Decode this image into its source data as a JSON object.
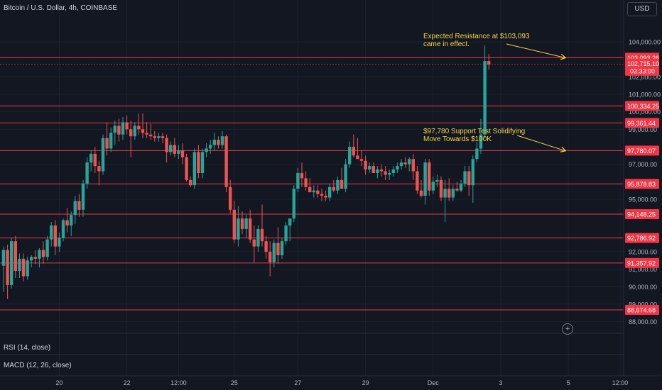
{
  "header": {
    "symbol_title": "Bitcoin / U.S. Dollar, 4h, COINBASE",
    "currency_label": "USD"
  },
  "indicators": {
    "rsi_label": "RSI (14, close)",
    "macd_label": "MACD (12, 26, close)"
  },
  "colors": {
    "background": "#131722",
    "up": "#26a69a",
    "down": "#ef5350",
    "level_line": "#f23645",
    "annotation": "#f5d547",
    "grid": "#1e222d",
    "axis_text": "#b2b5be"
  },
  "chart_data": {
    "type": "candlestick",
    "title": "Bitcoin / U.S. Dollar, 4h, COINBASE",
    "ylim": [
      87500,
      105500
    ],
    "y_ticks": [
      {
        "value": 104000,
        "label": "104,000.00"
      },
      {
        "value": 102000,
        "label": "102,000.00"
      },
      {
        "value": 101000,
        "label": "101,000.00"
      },
      {
        "value": 100000,
        "label": "100,000.00"
      },
      {
        "value": 99000,
        "label": "99,000.00"
      },
      {
        "value": 97000,
        "label": "97,000.00"
      },
      {
        "value": 95000,
        "label": "95,000.00"
      },
      {
        "value": 92000,
        "label": "92,000.00"
      },
      {
        "value": 91000,
        "label": "91,000.00"
      },
      {
        "value": 90000,
        "label": "90,000.00"
      },
      {
        "value": 89000,
        "label": "89,000.00"
      },
      {
        "value": 88000,
        "label": "88,000.00"
      }
    ],
    "x_labels": [
      {
        "index": 14,
        "label": "20"
      },
      {
        "index": 31,
        "label": "22"
      },
      {
        "index": 44,
        "label": "12:00"
      },
      {
        "index": 58,
        "label": "25"
      },
      {
        "index": 74,
        "label": "27"
      },
      {
        "index": 91,
        "label": "29"
      },
      {
        "index": 108,
        "label": "Dec"
      },
      {
        "index": 125,
        "label": "3"
      },
      {
        "index": 142,
        "label": "5"
      },
      {
        "index": 155,
        "label": "12:00"
      }
    ],
    "price_levels": [
      {
        "value": 103093.26,
        "label": "103,093.26"
      },
      {
        "value": 100334.25,
        "label": "100,334.25"
      },
      {
        "value": 99361.44,
        "label": "99,361.44"
      },
      {
        "value": 97780.07,
        "label": "97,780.07"
      },
      {
        "value": 95878.83,
        "label": "95,878.83"
      },
      {
        "value": 94148.25,
        "label": "94,148.25"
      },
      {
        "value": 92786.92,
        "label": "92,786.92"
      },
      {
        "value": 91357.92,
        "label": "91,357.92"
      },
      {
        "value": 88674.68,
        "label": "88,674.68"
      }
    ],
    "last_price": {
      "value": 102715.1,
      "label": "102,715.10",
      "countdown": "03:33:00"
    },
    "annotations": [
      {
        "lines": [
          "Expected Resistance at $103,093",
          "came in effect."
        ],
        "arrow_to_index": 142,
        "arrow_to_price": 103093
      },
      {
        "lines": [
          "$97,780 Support Test Solidifying",
          "Move Towards $100K"
        ],
        "arrow_to_index": 142,
        "arrow_to_price": 97780
      }
    ],
    "candles": [
      {
        "o": 91200,
        "h": 92300,
        "l": 89700,
        "c": 92100
      },
      {
        "o": 92100,
        "h": 92400,
        "l": 89300,
        "c": 90100
      },
      {
        "o": 90100,
        "h": 92800,
        "l": 89900,
        "c": 92600
      },
      {
        "o": 92600,
        "h": 92900,
        "l": 90500,
        "c": 90900
      },
      {
        "o": 90900,
        "h": 91900,
        "l": 90500,
        "c": 91600
      },
      {
        "o": 91600,
        "h": 91900,
        "l": 90300,
        "c": 90600
      },
      {
        "o": 90600,
        "h": 91700,
        "l": 90400,
        "c": 91500
      },
      {
        "o": 91500,
        "h": 91800,
        "l": 91100,
        "c": 91700
      },
      {
        "o": 91700,
        "h": 92100,
        "l": 91300,
        "c": 91600
      },
      {
        "o": 91600,
        "h": 92200,
        "l": 91100,
        "c": 92100
      },
      {
        "o": 92100,
        "h": 92600,
        "l": 91300,
        "c": 91700
      },
      {
        "o": 91700,
        "h": 92900,
        "l": 91500,
        "c": 92700
      },
      {
        "o": 92700,
        "h": 93700,
        "l": 92300,
        "c": 93500
      },
      {
        "o": 93500,
        "h": 93800,
        "l": 91800,
        "c": 92300
      },
      {
        "o": 92300,
        "h": 93100,
        "l": 92000,
        "c": 92800
      },
      {
        "o": 92800,
        "h": 93900,
        "l": 92600,
        "c": 93800
      },
      {
        "o": 93800,
        "h": 94500,
        "l": 93100,
        "c": 93500
      },
      {
        "o": 93500,
        "h": 94300,
        "l": 92900,
        "c": 94100
      },
      {
        "o": 94100,
        "h": 95200,
        "l": 93600,
        "c": 94900
      },
      {
        "o": 94900,
        "h": 95300,
        "l": 94000,
        "c": 94400
      },
      {
        "o": 94400,
        "h": 96100,
        "l": 94000,
        "c": 95900
      },
      {
        "o": 95900,
        "h": 97400,
        "l": 95600,
        "c": 97100
      },
      {
        "o": 97100,
        "h": 97800,
        "l": 96600,
        "c": 97600
      },
      {
        "o": 97600,
        "h": 98000,
        "l": 96500,
        "c": 96900
      },
      {
        "o": 96900,
        "h": 97200,
        "l": 95800,
        "c": 96600
      },
      {
        "o": 96600,
        "h": 98700,
        "l": 96400,
        "c": 98500
      },
      {
        "o": 98500,
        "h": 99400,
        "l": 97500,
        "c": 97900
      },
      {
        "o": 97900,
        "h": 99100,
        "l": 97700,
        "c": 98800
      },
      {
        "o": 98800,
        "h": 99500,
        "l": 98100,
        "c": 99200
      },
      {
        "o": 99200,
        "h": 99600,
        "l": 98300,
        "c": 98700
      },
      {
        "o": 98700,
        "h": 99700,
        "l": 98400,
        "c": 99400
      },
      {
        "o": 99400,
        "h": 99800,
        "l": 98700,
        "c": 99000
      },
      {
        "o": 99000,
        "h": 99500,
        "l": 97400,
        "c": 98600
      },
      {
        "o": 98600,
        "h": 99400,
        "l": 98400,
        "c": 99200
      },
      {
        "o": 99200,
        "h": 99900,
        "l": 98700,
        "c": 99000
      },
      {
        "o": 99000,
        "h": 99900,
        "l": 98500,
        "c": 98800
      },
      {
        "o": 98800,
        "h": 99400,
        "l": 98500,
        "c": 98700
      },
      {
        "o": 98700,
        "h": 99300,
        "l": 98400,
        "c": 98600
      },
      {
        "o": 98600,
        "h": 98900,
        "l": 98300,
        "c": 98500
      },
      {
        "o": 98500,
        "h": 98800,
        "l": 98300,
        "c": 98600
      },
      {
        "o": 98600,
        "h": 98800,
        "l": 98200,
        "c": 98500
      },
      {
        "o": 98500,
        "h": 98700,
        "l": 97100,
        "c": 97700
      },
      {
        "o": 97700,
        "h": 98300,
        "l": 97500,
        "c": 98100
      },
      {
        "o": 98100,
        "h": 98500,
        "l": 97400,
        "c": 97600
      },
      {
        "o": 97600,
        "h": 98100,
        "l": 97300,
        "c": 97800
      },
      {
        "o": 97800,
        "h": 98200,
        "l": 97000,
        "c": 97400
      },
      {
        "o": 97400,
        "h": 97600,
        "l": 96000,
        "c": 96100
      },
      {
        "o": 96100,
        "h": 96300,
        "l": 95700,
        "c": 95800
      },
      {
        "o": 95800,
        "h": 97900,
        "l": 95600,
        "c": 97700
      },
      {
        "o": 97700,
        "h": 98100,
        "l": 96200,
        "c": 96500
      },
      {
        "o": 96500,
        "h": 97900,
        "l": 96200,
        "c": 97700
      },
      {
        "o": 97700,
        "h": 98200,
        "l": 97400,
        "c": 97900
      },
      {
        "o": 97900,
        "h": 98400,
        "l": 97600,
        "c": 98100
      },
      {
        "o": 98100,
        "h": 98800,
        "l": 97800,
        "c": 98400
      },
      {
        "o": 98400,
        "h": 98600,
        "l": 97900,
        "c": 98100
      },
      {
        "o": 98100,
        "h": 98900,
        "l": 97900,
        "c": 98600
      },
      {
        "o": 98600,
        "h": 98700,
        "l": 95400,
        "c": 95700
      },
      {
        "o": 95700,
        "h": 96100,
        "l": 94200,
        "c": 94400
      },
      {
        "o": 94400,
        "h": 94900,
        "l": 92500,
        "c": 92700
      },
      {
        "o": 92700,
        "h": 94600,
        "l": 92300,
        "c": 93900
      },
      {
        "o": 93900,
        "h": 94300,
        "l": 93000,
        "c": 93300
      },
      {
        "o": 93300,
        "h": 94100,
        "l": 92800,
        "c": 93900
      },
      {
        "o": 93900,
        "h": 94400,
        "l": 92500,
        "c": 92700
      },
      {
        "o": 92700,
        "h": 93500,
        "l": 91400,
        "c": 92300
      },
      {
        "o": 92300,
        "h": 93500,
        "l": 92000,
        "c": 93300
      },
      {
        "o": 93300,
        "h": 94700,
        "l": 92300,
        "c": 92600
      },
      {
        "o": 92600,
        "h": 92900,
        "l": 91600,
        "c": 92000
      },
      {
        "o": 92000,
        "h": 92600,
        "l": 90600,
        "c": 91400
      },
      {
        "o": 91400,
        "h": 92700,
        "l": 91100,
        "c": 92500
      },
      {
        "o": 92500,
        "h": 93400,
        "l": 91300,
        "c": 91800
      },
      {
        "o": 91800,
        "h": 92800,
        "l": 91600,
        "c": 92600
      },
      {
        "o": 92600,
        "h": 93700,
        "l": 92400,
        "c": 93500
      },
      {
        "o": 93500,
        "h": 93900,
        "l": 92600,
        "c": 93900
      },
      {
        "o": 93900,
        "h": 95800,
        "l": 93700,
        "c": 95600
      },
      {
        "o": 95600,
        "h": 96800,
        "l": 95400,
        "c": 96500
      },
      {
        "o": 96500,
        "h": 97100,
        "l": 95700,
        "c": 96200
      },
      {
        "o": 96200,
        "h": 96600,
        "l": 95500,
        "c": 95700
      },
      {
        "o": 95700,
        "h": 96200,
        "l": 95400,
        "c": 95400
      },
      {
        "o": 95400,
        "h": 95800,
        "l": 95100,
        "c": 95500
      },
      {
        "o": 95500,
        "h": 95800,
        "l": 95100,
        "c": 95300
      },
      {
        "o": 95300,
        "h": 95600,
        "l": 94900,
        "c": 95200
      },
      {
        "o": 95200,
        "h": 95500,
        "l": 94900,
        "c": 95100
      },
      {
        "o": 95100,
        "h": 95900,
        "l": 94900,
        "c": 95700
      },
      {
        "o": 95700,
        "h": 96100,
        "l": 95400,
        "c": 95500
      },
      {
        "o": 95500,
        "h": 96300,
        "l": 95300,
        "c": 96100
      },
      {
        "o": 96100,
        "h": 96800,
        "l": 95700,
        "c": 95600
      },
      {
        "o": 95600,
        "h": 97300,
        "l": 95400,
        "c": 97000
      },
      {
        "o": 97000,
        "h": 98300,
        "l": 96800,
        "c": 98000
      },
      {
        "o": 98000,
        "h": 98700,
        "l": 97400,
        "c": 97500
      },
      {
        "o": 97500,
        "h": 98500,
        "l": 97300,
        "c": 97300
      },
      {
        "o": 97300,
        "h": 97800,
        "l": 96900,
        "c": 97200
      },
      {
        "o": 97200,
        "h": 97500,
        "l": 96400,
        "c": 96700
      },
      {
        "o": 96700,
        "h": 97100,
        "l": 96500,
        "c": 96900
      },
      {
        "o": 96900,
        "h": 97100,
        "l": 96500,
        "c": 96500
      },
      {
        "o": 96500,
        "h": 96900,
        "l": 96200,
        "c": 96700
      },
      {
        "o": 96700,
        "h": 97000,
        "l": 96300,
        "c": 96600
      },
      {
        "o": 96600,
        "h": 96900,
        "l": 96100,
        "c": 96400
      },
      {
        "o": 96400,
        "h": 96700,
        "l": 96100,
        "c": 96500
      },
      {
        "o": 96500,
        "h": 96900,
        "l": 96300,
        "c": 96700
      },
      {
        "o": 96700,
        "h": 97100,
        "l": 96500,
        "c": 96900
      },
      {
        "o": 96900,
        "h": 97300,
        "l": 96700,
        "c": 97100
      },
      {
        "o": 97100,
        "h": 97400,
        "l": 96800,
        "c": 97000
      },
      {
        "o": 97000,
        "h": 97400,
        "l": 96600,
        "c": 97300
      },
      {
        "o": 97300,
        "h": 97600,
        "l": 96100,
        "c": 96600
      },
      {
        "o": 96600,
        "h": 96900,
        "l": 95300,
        "c": 95500
      },
      {
        "o": 95500,
        "h": 96100,
        "l": 95100,
        "c": 95200
      },
      {
        "o": 95200,
        "h": 97300,
        "l": 94700,
        "c": 97100
      },
      {
        "o": 97100,
        "h": 97300,
        "l": 95200,
        "c": 95500
      },
      {
        "o": 95500,
        "h": 96300,
        "l": 95300,
        "c": 96000
      },
      {
        "o": 96000,
        "h": 96400,
        "l": 95700,
        "c": 96100
      },
      {
        "o": 96100,
        "h": 96300,
        "l": 94900,
        "c": 95100
      },
      {
        "o": 95100,
        "h": 96100,
        "l": 93700,
        "c": 95600
      },
      {
        "o": 95600,
        "h": 96200,
        "l": 94900,
        "c": 95100
      },
      {
        "o": 95100,
        "h": 95800,
        "l": 94900,
        "c": 95600
      },
      {
        "o": 95600,
        "h": 96000,
        "l": 95400,
        "c": 95500
      },
      {
        "o": 95500,
        "h": 96100,
        "l": 95400,
        "c": 95900
      },
      {
        "o": 95900,
        "h": 96900,
        "l": 95700,
        "c": 96600
      },
      {
        "o": 96600,
        "h": 96900,
        "l": 95200,
        "c": 95800
      },
      {
        "o": 95800,
        "h": 97500,
        "l": 94800,
        "c": 97300
      },
      {
        "o": 97300,
        "h": 98300,
        "l": 97100,
        "c": 97900
      },
      {
        "o": 97900,
        "h": 99600,
        "l": 97600,
        "c": 98700
      },
      {
        "o": 98700,
        "h": 103800,
        "l": 98500,
        "c": 102900
      },
      {
        "o": 102900,
        "h": 103300,
        "l": 102400,
        "c": 102700
      }
    ]
  }
}
